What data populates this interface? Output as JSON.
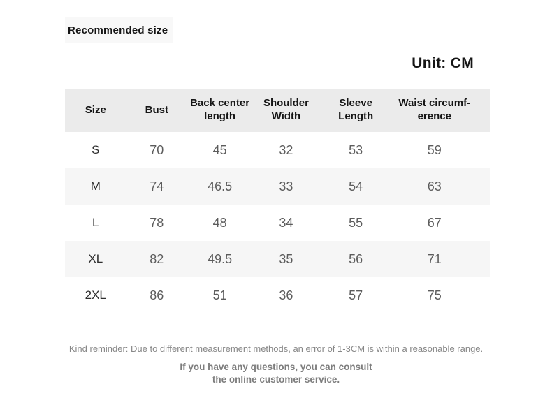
{
  "header": {
    "recommended_label": "Recommended size",
    "unit_label": "Unit: CM"
  },
  "table": {
    "columns": [
      "Size",
      "Bust",
      "Back center\nlength",
      "Shoulder\nWidth",
      "Sleeve\nLength",
      "Waist circumf-\nerence"
    ],
    "rows": [
      {
        "size": "S",
        "values": [
          "70",
          "45",
          "32",
          "53",
          "59"
        ]
      },
      {
        "size": "M",
        "values": [
          "74",
          "46.5",
          "33",
          "54",
          "63"
        ]
      },
      {
        "size": "L",
        "values": [
          "78",
          "48",
          "34",
          "55",
          "67"
        ]
      },
      {
        "size": "XL",
        "values": [
          "82",
          "49.5",
          "35",
          "56",
          "71"
        ]
      },
      {
        "size": "2XL",
        "values": [
          "86",
          "51",
          "36",
          "57",
          "75"
        ]
      }
    ]
  },
  "footer": {
    "reminder": "Kind reminder: Due to different measurement methods, an error of 1-3CM is within a reasonable range.",
    "consult_line1": "If you have any questions, you can consult",
    "consult_line2": "the online customer service."
  },
  "colors": {
    "table_header_bg": "#ebebeb",
    "row_alt_bg": "#f6f6f6",
    "title_box_bg": "#f8f8f8",
    "heading_text": "#151515",
    "value_text": "#5c5c5c",
    "footer_text": "#878787"
  }
}
